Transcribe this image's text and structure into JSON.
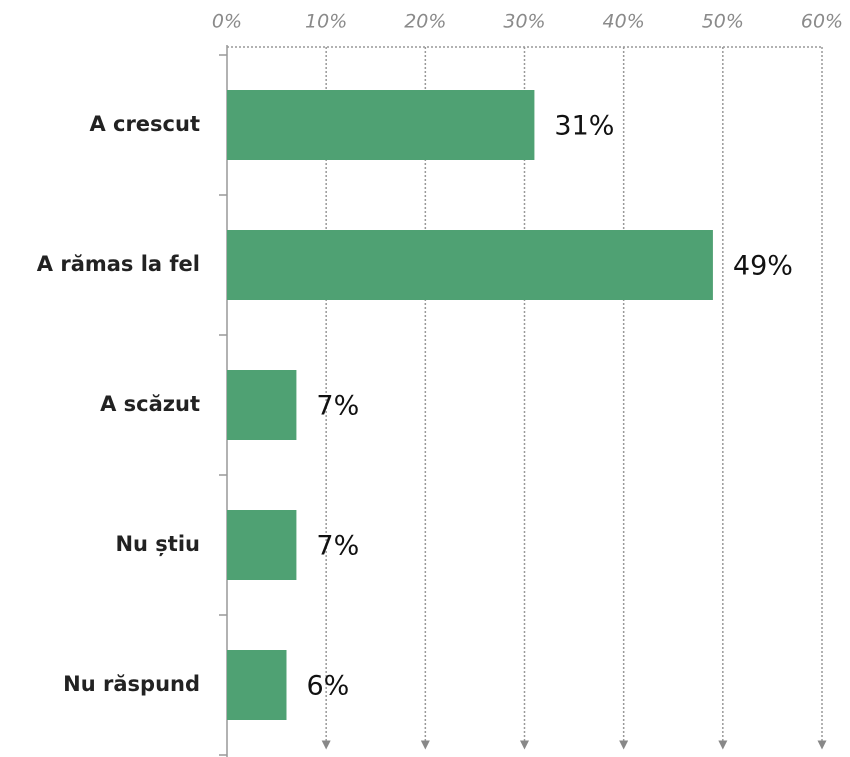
{
  "chart_data": {
    "type": "bar",
    "orientation": "horizontal",
    "categories": [
      "A crescut",
      "A rămas la fel",
      "A scăzut",
      "Nu știu",
      "Nu răspund"
    ],
    "values": [
      31,
      49,
      7,
      7,
      6
    ],
    "value_labels": [
      "31%",
      "49%",
      "7%",
      "7%",
      "6%"
    ],
    "color": "#4fa173",
    "xlim": [
      0,
      60
    ],
    "xticks": [
      {
        "value": 0,
        "label": "0%"
      },
      {
        "value": 10,
        "label": "10%"
      },
      {
        "value": 20,
        "label": "20%"
      },
      {
        "value": 30,
        "label": "30%"
      },
      {
        "value": 40,
        "label": "40%"
      },
      {
        "value": 50,
        "label": "50%"
      },
      {
        "value": 60,
        "label": "60%"
      }
    ],
    "grid": true
  }
}
